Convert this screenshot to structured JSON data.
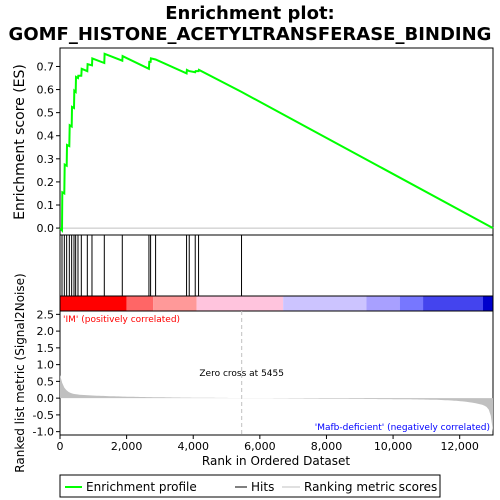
{
  "chart_data": {
    "type": "line",
    "title_line1": "Enrichment plot:",
    "title_line2": "GOMF_HISTONE_ACETYLTRANSFERASE_BINDING",
    "ylabel_top": "Enrichment score (ES)",
    "ylabel_bottom": "Ranked list metric (Signal2Noise)",
    "xlabel": "Rank in Ordered Dataset",
    "xlim": [
      0,
      13000
    ],
    "ylim_top": [
      -0.03,
      0.78
    ],
    "ylim_bottom": [
      -1.1,
      2.6
    ],
    "x_ticks": [
      0,
      2000,
      4000,
      6000,
      8000,
      10000,
      12000
    ],
    "x_tick_labels": [
      "0",
      "2,000",
      "4,000",
      "6,000",
      "8,000",
      "10,000",
      "12,000"
    ],
    "y_ticks_top": [
      0.0,
      0.1,
      0.2,
      0.3,
      0.4,
      0.5,
      0.6,
      0.7
    ],
    "y_tick_labels_top": [
      "0.0",
      "0.1",
      "0.2",
      "0.3",
      "0.4",
      "0.5",
      "0.6",
      "0.7"
    ],
    "y_ticks_bottom": [
      -1.0,
      -0.5,
      0.0,
      0.5,
      1.0,
      1.5,
      2.0,
      2.5
    ],
    "y_tick_labels_bottom": [
      "-1.0",
      "-0.5",
      "0.0",
      "0.5",
      "1.0",
      "1.5",
      "2.0",
      "2.5"
    ],
    "hits": [
      60,
      130,
      200,
      280,
      350,
      420,
      470,
      540,
      640,
      820,
      960,
      1330,
      1870,
      2670,
      2720,
      2870,
      3800,
      3880,
      4060,
      4160,
      5450
    ],
    "es_curve": [
      [
        0,
        0.0
      ],
      [
        60,
        -0.01
      ],
      [
        70,
        0.155
      ],
      [
        130,
        0.15
      ],
      [
        140,
        0.275
      ],
      [
        200,
        0.27
      ],
      [
        210,
        0.36
      ],
      [
        280,
        0.355
      ],
      [
        290,
        0.445
      ],
      [
        350,
        0.44
      ],
      [
        360,
        0.525
      ],
      [
        420,
        0.52
      ],
      [
        430,
        0.595
      ],
      [
        470,
        0.59
      ],
      [
        480,
        0.655
      ],
      [
        540,
        0.65
      ],
      [
        550,
        0.66
      ],
      [
        640,
        0.66
      ],
      [
        650,
        0.69
      ],
      [
        820,
        0.68
      ],
      [
        830,
        0.71
      ],
      [
        960,
        0.705
      ],
      [
        970,
        0.735
      ],
      [
        1330,
        0.715
      ],
      [
        1340,
        0.755
      ],
      [
        1870,
        0.725
      ],
      [
        1880,
        0.745
      ],
      [
        2670,
        0.69
      ],
      [
        2680,
        0.72
      ],
      [
        2720,
        0.72
      ],
      [
        2730,
        0.735
      ],
      [
        2870,
        0.73
      ],
      [
        3800,
        0.67
      ],
      [
        3810,
        0.685
      ],
      [
        3880,
        0.68
      ],
      [
        4060,
        0.675
      ],
      [
        4070,
        0.68
      ],
      [
        4160,
        0.68
      ],
      [
        4170,
        0.685
      ],
      [
        5450,
        0.59
      ],
      [
        13000,
        0.0
      ]
    ],
    "zero_cross_label": "Zero cross at 5455",
    "zero_cross": 5455,
    "pos_label": "'IM' (positively correlated)",
    "neg_label": "'Mafb-deficient' (negatively correlated)",
    "colors": {
      "es_line": "#00ff00",
      "hits": "#000000",
      "metric_fill": "#c0c0c0",
      "pos_text": "#ff0000",
      "neg_text": "#0000ff",
      "zero_line": "#c0c0c0"
    },
    "heat_segments": [
      {
        "from": 0,
        "to": 2000,
        "color": "#ff0000"
      },
      {
        "from": 2000,
        "to": 2800,
        "color": "#ff6666"
      },
      {
        "from": 2800,
        "to": 4100,
        "color": "#ff9999"
      },
      {
        "from": 4100,
        "to": 6700,
        "color": "#ffc4dd"
      },
      {
        "from": 6700,
        "to": 9200,
        "color": "#ccc4ff"
      },
      {
        "from": 9200,
        "to": 10200,
        "color": "#a8a0ff"
      },
      {
        "from": 10200,
        "to": 10900,
        "color": "#7777ff"
      },
      {
        "from": 10900,
        "to": 12700,
        "color": "#4444ee"
      },
      {
        "from": 12700,
        "to": 13000,
        "color": "#0000cc"
      }
    ]
  },
  "legend": {
    "items": [
      "Enrichment profile",
      "Hits",
      "Ranking metric scores"
    ]
  }
}
